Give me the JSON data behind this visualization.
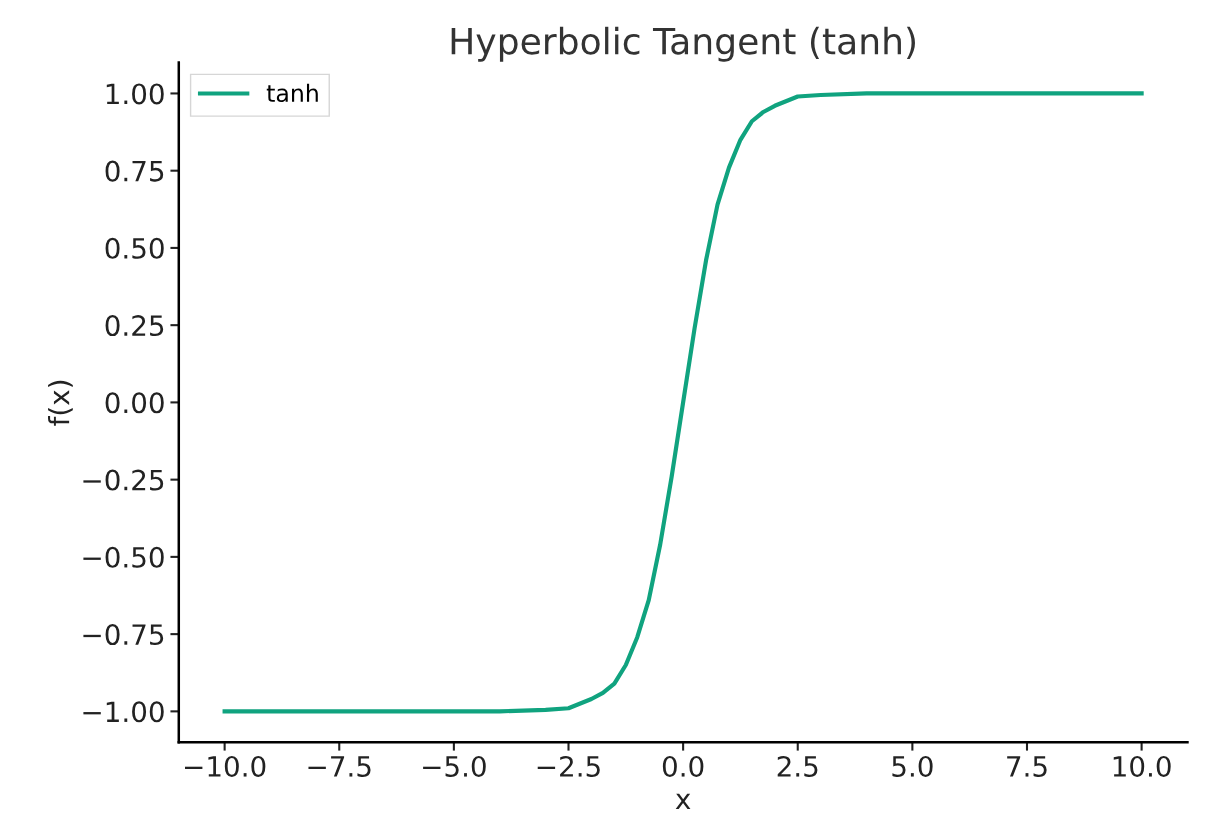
{
  "chart_data": {
    "type": "line",
    "title": "Hyperbolic Tangent (tanh)",
    "xlabel": "x",
    "ylabel": "f(x)",
    "x": [
      -10,
      -7.5,
      -5,
      -4,
      -3,
      -2.5,
      -2,
      -1.75,
      -1.5,
      -1.25,
      -1,
      -0.75,
      -0.5,
      -0.25,
      0,
      0.25,
      0.5,
      0.75,
      1,
      1.25,
      1.5,
      1.75,
      2,
      2.5,
      3,
      4,
      5,
      7.5,
      10
    ],
    "series": [
      {
        "name": "tanh",
        "color": "#10a37f",
        "values": [
          -1,
          -1,
          -1,
          -1,
          -0.995,
          -0.99,
          -0.96,
          -0.94,
          -0.91,
          -0.85,
          -0.76,
          -0.64,
          -0.46,
          -0.24,
          0,
          0.24,
          0.46,
          0.64,
          0.76,
          0.85,
          0.91,
          0.94,
          0.96,
          0.99,
          0.995,
          1,
          1,
          1,
          1
        ]
      }
    ],
    "xlim": [
      -11,
      11
    ],
    "ylim": [
      -1.1,
      1.1
    ],
    "xticks": [
      {
        "value": -10,
        "label": "−10.0"
      },
      {
        "value": -7.5,
        "label": "−7.5"
      },
      {
        "value": -5,
        "label": "−5.0"
      },
      {
        "value": -2.5,
        "label": "−2.5"
      },
      {
        "value": 0,
        "label": "0.0"
      },
      {
        "value": 2.5,
        "label": "2.5"
      },
      {
        "value": 5,
        "label": "5.0"
      },
      {
        "value": 7.5,
        "label": "7.5"
      },
      {
        "value": 10,
        "label": "10.0"
      }
    ],
    "yticks": [
      {
        "value": -1,
        "label": "−1.00"
      },
      {
        "value": -0.75,
        "label": "−0.75"
      },
      {
        "value": -0.5,
        "label": "−0.50"
      },
      {
        "value": -0.25,
        "label": "−0.25"
      },
      {
        "value": 0,
        "label": "0.00"
      },
      {
        "value": 0.25,
        "label": "0.25"
      },
      {
        "value": 0.5,
        "label": "0.50"
      },
      {
        "value": 0.75,
        "label": "0.75"
      },
      {
        "value": 1,
        "label": "1.00"
      }
    ],
    "grid": false,
    "legend": "top left",
    "line_style": "solid",
    "marker": "none"
  }
}
